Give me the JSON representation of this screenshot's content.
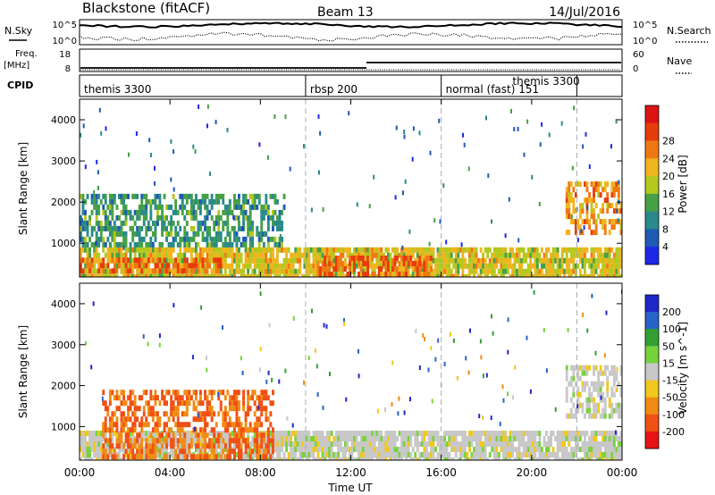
{
  "header": {
    "station": "Blackstone (fitACF)",
    "beam": "Beam 13",
    "date": "14/Jul/2016"
  },
  "sky_panel": {
    "left_label": "N.Sky",
    "right_label": "N.Search",
    "left_ticks": [
      "10^5",
      "10^0"
    ],
    "right_ticks": [
      "10^5",
      "10^0"
    ]
  },
  "freq_panel": {
    "left_label_top": "Freq.",
    "left_label_unit": "[MHz]",
    "right_label": "Nave",
    "left_ticks": [
      "18",
      "8"
    ],
    "right_ticks": [
      "60",
      "0"
    ]
  },
  "cpid_panel": {
    "label": "CPID",
    "modes": [
      {
        "label": "themis 3300",
        "start_hour": 0.0
      },
      {
        "label": "rbsp 200",
        "start_hour": 10.0
      },
      {
        "label": "normal (fast) 151",
        "start_hour": 16.0
      },
      {
        "label": "themis 3300",
        "start_hour": 22.0
      }
    ]
  },
  "chart_data": [
    {
      "type": "heatmap",
      "title": "Power",
      "ylabel": "Slant Range [km]",
      "xlabel": "Time UT",
      "xlim": [
        0,
        24
      ],
      "ylim": [
        180,
        4500
      ],
      "x_tick_labels": [
        "00:00",
        "04:00",
        "08:00",
        "12:00",
        "16:00",
        "20:00",
        "00:00"
      ],
      "y_ticks": [
        1000,
        2000,
        3000,
        4000
      ],
      "colorbar": {
        "label": "Power [dB]",
        "ticks": [
          "4",
          "8",
          "12",
          "16",
          "20",
          "24",
          "28"
        ],
        "colors": [
          "#1e28e6",
          "#1e5ab4",
          "#2a8a8a",
          "#46a046",
          "#b4c81e",
          "#f0b41e",
          "#f07814",
          "#e63c0a",
          "#dc1414"
        ]
      },
      "regions": [
        {
          "name": "near-range band",
          "t_start": 0.0,
          "t_end": 24.0,
          "range_km": [
            180,
            900
          ],
          "power_db": 20
        },
        {
          "name": "strong near-range echoes",
          "t_start": 0.0,
          "t_end": 6.5,
          "range_km": [
            300,
            650
          ],
          "power_db": 28
        },
        {
          "name": "strong echoes midday",
          "t_start": 10.5,
          "t_end": 15.5,
          "range_km": [
            300,
            700
          ],
          "power_db": 28
        },
        {
          "name": "upper echo band",
          "t_start": 0.0,
          "t_end": 9.0,
          "range_km": [
            1000,
            2200
          ],
          "power_db": 12
        },
        {
          "name": "evening high-range echoes",
          "t_start": 21.5,
          "t_end": 24.0,
          "range_km": [
            1200,
            2500
          ],
          "power_db": 24
        }
      ],
      "mode_change_lines_hours": [
        10.0,
        16.0,
        22.0
      ]
    },
    {
      "type": "heatmap",
      "title": "Velocity",
      "ylabel": "Slant Range [km]",
      "xlabel": "Time UT",
      "xlim": [
        0,
        24
      ],
      "ylim": [
        180,
        4500
      ],
      "x_tick_labels": [
        "00:00",
        "04:00",
        "08:00",
        "12:00",
        "16:00",
        "20:00",
        "00:00"
      ],
      "y_ticks": [
        1000,
        2000,
        3000,
        4000
      ],
      "colorbar": {
        "label": "Velocity [m s^-1]",
        "ticks": [
          "200",
          "100",
          "50",
          "15",
          "-15",
          "-50",
          "-100",
          "-200"
        ],
        "colors": [
          "#1e28c8",
          "#2864c8",
          "#32a032",
          "#78d23c",
          "#c8c8c8",
          "#f0c81e",
          "#f08c14",
          "#f05014",
          "#e61414"
        ]
      },
      "regions": [
        {
          "name": "ground scatter band",
          "t_start": 0.0,
          "t_end": 24.0,
          "range_km": [
            180,
            900
          ],
          "velocity_ms": 0
        },
        {
          "name": "negative velocity patch",
          "t_start": 1.0,
          "t_end": 8.5,
          "range_km": [
            300,
            1900
          ],
          "velocity_ms": -100
        },
        {
          "name": "evening ground scatter",
          "t_start": 21.5,
          "t_end": 24.0,
          "range_km": [
            1200,
            2500
          ],
          "velocity_ms": 0
        }
      ],
      "mode_change_lines_hours": [
        10.0,
        16.0,
        22.0
      ]
    }
  ]
}
